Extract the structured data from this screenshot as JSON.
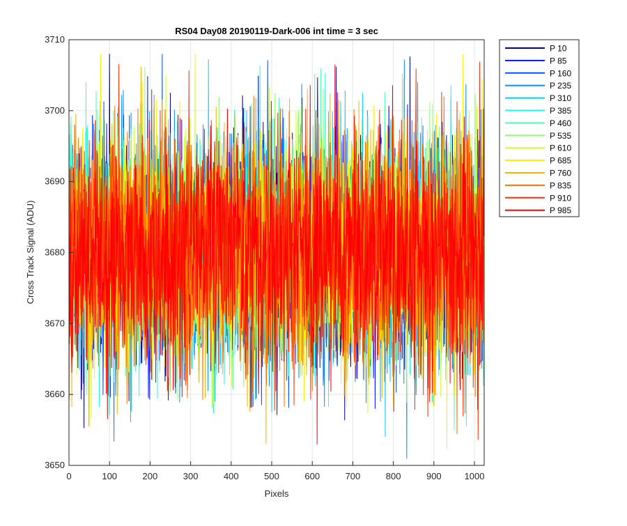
{
  "chart_data": {
    "type": "line",
    "title": "RS04 Day08 20190119-Dark-006 int time = 3 sec",
    "xlabel": "Pixels",
    "ylabel": "Cross Track Signal (ADU)",
    "xlim": [
      0,
      1024
    ],
    "ylim": [
      3650,
      3710
    ],
    "xticks": [
      0,
      100,
      200,
      300,
      400,
      500,
      600,
      700,
      800,
      900,
      1000
    ],
    "yticks": [
      3650,
      3660,
      3670,
      3680,
      3690,
      3700,
      3710
    ],
    "grid": true,
    "legend_position": "outside-top-right",
    "signal_center": 3680,
    "signal_band": [
      3665,
      3697
    ],
    "signal_extremes": [
      3650,
      3708
    ],
    "series": [
      {
        "name": "P 10",
        "color": "#00008f"
      },
      {
        "name": "P 85",
        "color": "#0010ff"
      },
      {
        "name": "P 160",
        "color": "#0050ff"
      },
      {
        "name": "P 235",
        "color": "#0090ff"
      },
      {
        "name": "P 310",
        "color": "#00d0ff"
      },
      {
        "name": "P 385",
        "color": "#10ffef"
      },
      {
        "name": "P 460",
        "color": "#50ffaf"
      },
      {
        "name": "P 535",
        "color": "#90ff70"
      },
      {
        "name": "P 610",
        "color": "#d0ff30"
      },
      {
        "name": "P 685",
        "color": "#ffef00"
      },
      {
        "name": "P 760",
        "color": "#ffb000"
      },
      {
        "name": "P 835",
        "color": "#ff7000"
      },
      {
        "name": "P 910",
        "color": "#ff3000"
      },
      {
        "name": "P 985",
        "color": "#ff0000"
      }
    ]
  }
}
